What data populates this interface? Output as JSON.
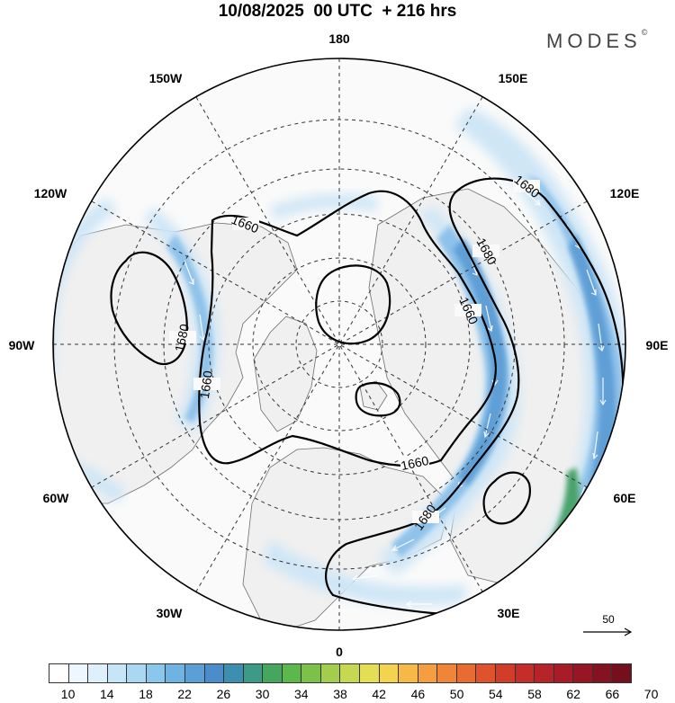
{
  "title": "10/08/2025  00 UTC  + 216 hrs",
  "logo": "MODES",
  "logo_mark": "©",
  "longitude_labels": {
    "deg180": "180",
    "w150": "150W",
    "e150": "150E",
    "w120": "120W",
    "e120": "120E",
    "w90": "90W",
    "e90": "90E",
    "w60": "60W",
    "e60": "60E",
    "w30": "30W",
    "e30": "30E",
    "deg0": "0"
  },
  "contour_labels": {
    "a": "1660",
    "b": "1680",
    "c": "1680",
    "d": "1660",
    "e": "1680",
    "f": "1660",
    "g": "1660",
    "h": "1680"
  },
  "reference_vector": {
    "value": "50"
  },
  "colorbar": {
    "labels": [
      "10",
      "14",
      "18",
      "22",
      "26",
      "30",
      "34",
      "38",
      "42",
      "46",
      "50",
      "54",
      "58",
      "62",
      "66",
      "70"
    ],
    "colors": [
      "#ffffff",
      "#eef7fd",
      "#ddf0fb",
      "#c6e6f8",
      "#aad8f2",
      "#8bc6ec",
      "#6fb3e2",
      "#5a9fd6",
      "#4a8dca",
      "#3d8fb0",
      "#3c9a86",
      "#45a65d",
      "#5cb84a",
      "#7cc24a",
      "#a2cd4d",
      "#c6d851",
      "#e4de55",
      "#f4d34f",
      "#f6b948",
      "#f59e3f",
      "#f08538",
      "#e86b31",
      "#de522c",
      "#d23d2a",
      "#c52d2a",
      "#b62328",
      "#a71c26",
      "#961723",
      "#851220",
      "#74101d"
    ]
  },
  "colors": {
    "contour": "#000000",
    "land_fill": "#f2f2f2",
    "coast": "#6e6e6e",
    "grid": "#333333",
    "jet_light": "#cfe6f6",
    "jet_mid": "#9fcbee",
    "jet_strong": "#5f9fd6",
    "jet_max": "#48a36a"
  }
}
